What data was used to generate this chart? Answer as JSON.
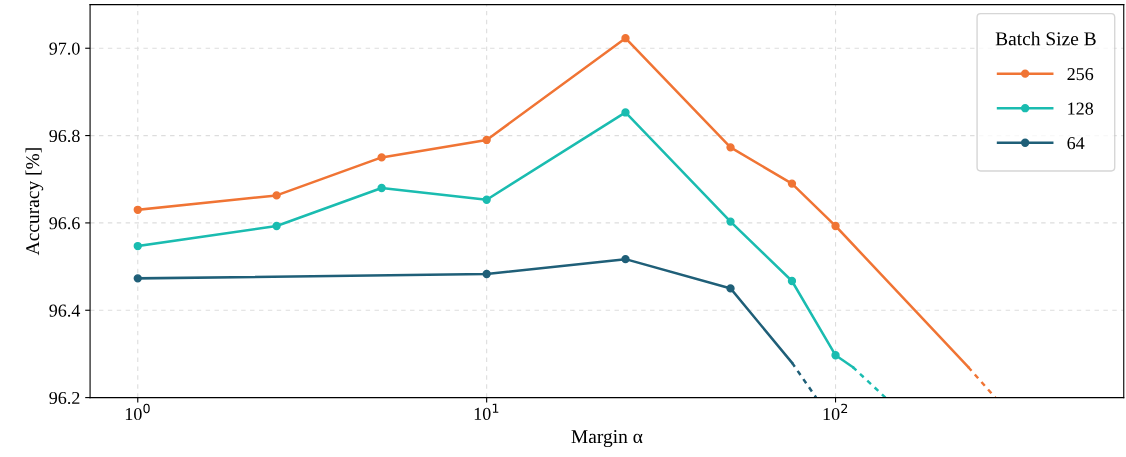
{
  "chart_data": {
    "type": "line",
    "xlabel": "Margin α",
    "ylabel": "Accuracy [%]",
    "legend_title": "Batch Size B",
    "log": "x",
    "grid": true,
    "legend": "top right",
    "marker": "circle",
    "line_style": "solid",
    "xlim": [
      0.73,
      670
    ],
    "xticks": [
      {
        "value": 1,
        "label": "10$^{0}$"
      },
      {
        "value": 10,
        "label": "10$^{1}$"
      },
      {
        "value": 100,
        "label": "10$^{2}$"
      }
    ],
    "ylim": [
      96.2,
      97.1
    ],
    "yticks": [
      {
        "value": 96.2,
        "label": "96.2"
      },
      {
        "value": 96.4,
        "label": "96.4"
      },
      {
        "value": 96.6,
        "label": "96.6"
      },
      {
        "value": 96.8,
        "label": "96.8"
      },
      {
        "value": 97.0,
        "label": "97.0"
      }
    ],
    "series": [
      {
        "name": "256",
        "color": "#f07434",
        "x": [
          1,
          2.5,
          5,
          10,
          25,
          50,
          75,
          100
        ],
        "values": [
          96.63,
          96.663,
          96.75,
          96.79,
          97.023,
          96.773,
          96.69,
          96.593
        ]
      },
      {
        "name": "128",
        "color": "#1abcb0",
        "x": [
          1,
          2.5,
          5,
          10,
          25,
          50,
          75,
          100
        ],
        "values": [
          96.547,
          96.593,
          96.68,
          96.653,
          96.853,
          96.603,
          96.467,
          96.297
        ]
      },
      {
        "name": "64",
        "color": "#1f5f78",
        "x": [
          1,
          10,
          25,
          50
        ],
        "values": [
          96.473,
          96.483,
          96.517,
          96.45
        ]
      },
      {
        "color": "#f07434",
        "marker": "none",
        "x": [
          100,
          240
        ],
        "values": [
          96.593,
          96.27
        ]
      },
      {
        "color": "#f07434",
        "marker": "none",
        "line_style": "dashed",
        "x": [
          240,
          287
        ],
        "values": [
          96.27,
          96.2
        ]
      },
      {
        "color": "#1abcb0",
        "marker": "none",
        "x": [
          100,
          112
        ],
        "values": [
          96.297,
          96.27
        ]
      },
      {
        "color": "#1abcb0",
        "marker": "none",
        "line_style": "dashed",
        "x": [
          112,
          139
        ],
        "values": [
          96.27,
          96.2
        ]
      },
      {
        "color": "#1f5f78",
        "marker": "none",
        "x": [
          50,
          75
        ],
        "values": [
          96.45,
          96.28
        ]
      },
      {
        "color": "#1f5f78",
        "marker": "none",
        "line_style": "dashed",
        "x": [
          75,
          88
        ],
        "values": [
          96.28,
          96.2
        ]
      }
    ]
  }
}
